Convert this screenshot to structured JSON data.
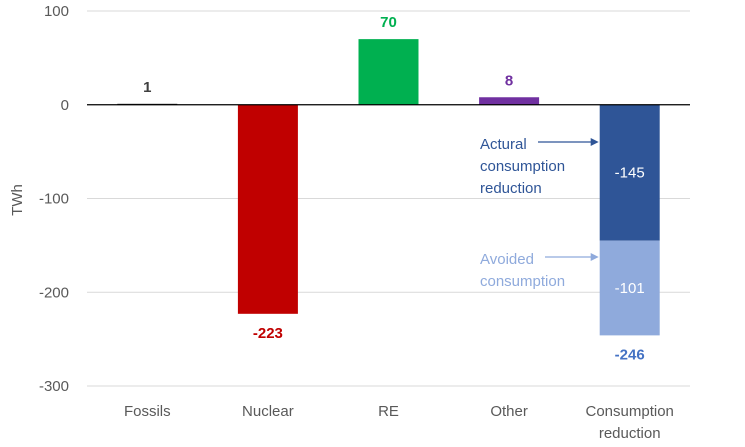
{
  "chart_data": {
    "type": "bar",
    "ylabel": "TWh",
    "ylim": [
      -300,
      100
    ],
    "yticks": [
      100,
      0,
      -100,
      -200,
      -300
    ],
    "grid": true,
    "categories": [
      "Fossils",
      "Nuclear",
      "RE",
      "Other",
      "Consumption\nreduction"
    ],
    "values": [
      1,
      -223,
      70,
      8,
      -246
    ],
    "value_labels": [
      "1",
      "-223",
      "70",
      "8",
      "-246"
    ],
    "bar_colors": [
      "#222222",
      "#c00000",
      "#00b050",
      "#7030a0",
      "#2f5597"
    ],
    "label_colors": [
      "#404040",
      "#c00000",
      "#00b050",
      "#7030a0",
      "#4472c4"
    ],
    "stacked_segments": [
      {
        "category": "Consumption\nreduction",
        "name": "Actural consumption reduction",
        "from": 0,
        "to": -145,
        "label": "-145",
        "color": "#2f5597",
        "label_color": "#ffffff"
      },
      {
        "category": "Consumption\nreduction",
        "name": "Avoided consumption",
        "from": -145,
        "to": -246,
        "label": "-101",
        "color": "#8faadc",
        "label_color": "#ffffff"
      }
    ],
    "annotations": [
      {
        "text": [
          "Actural",
          "consumption",
          "reduction"
        ],
        "color": "#2f5597"
      },
      {
        "text": [
          "Avoided",
          "consumption"
        ],
        "color": "#8faadc"
      }
    ]
  }
}
